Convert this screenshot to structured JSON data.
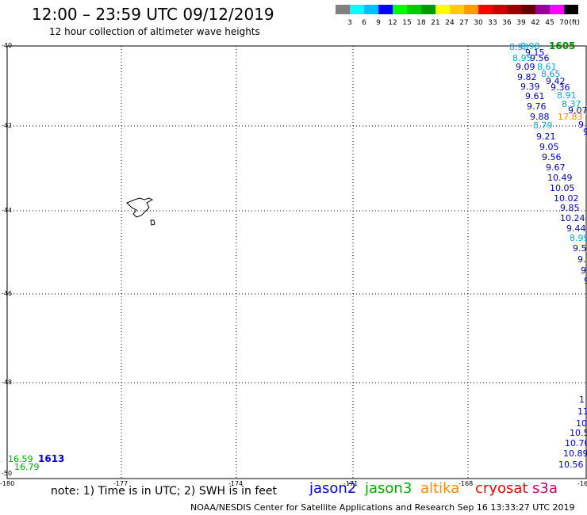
{
  "header": {
    "title": "12:00 – 23:59 UTC 09/12/2019",
    "subtitle": "12 hour collection of altimeter wave heights"
  },
  "colorbar": {
    "colors": [
      "#808080",
      "#00ffff",
      "#00bfff",
      "#0000ff",
      "#00ff00",
      "#00cc00",
      "#009900",
      "#ffff00",
      "#ffcc00",
      "#ff9900",
      "#ff0000",
      "#cc0000",
      "#990000",
      "#660000",
      "#990099",
      "#ff00ff",
      "#000000"
    ],
    "labels": [
      "3",
      "6",
      "9",
      "12",
      "15",
      "18",
      "21",
      "24",
      "27",
      "30",
      "33",
      "36",
      "39",
      "42",
      "45",
      "70"
    ],
    "unit": "(ft)"
  },
  "axes": {
    "lat_labels": [
      "-40",
      "-42",
      "-44",
      "-46",
      "-48",
      "-50"
    ],
    "lon_labels": [
      "-180",
      "-177",
      "-174",
      "-171",
      "-168",
      "-16"
    ]
  },
  "track_labels": {
    "top_time": "1605",
    "bottom_time": "1613",
    "right_track": [
      {
        "t": "8.98",
        "c": "#00aadd"
      },
      {
        "t": "8.93",
        "c": "#00aadd"
      },
      {
        "t": "9.15",
        "c": "#0000cc"
      },
      {
        "t": "8.95",
        "c": "#00aadd"
      },
      {
        "t": "9.56",
        "c": "#0000cc"
      },
      {
        "t": "9.09",
        "c": "#0000cc"
      },
      {
        "t": "8.61",
        "c": "#00aadd"
      },
      {
        "t": "8.65",
        "c": "#00aadd"
      },
      {
        "t": "9.82",
        "c": "#0000cc"
      },
      {
        "t": "9.42",
        "c": "#0000cc"
      },
      {
        "t": "9.39",
        "c": "#0000cc"
      },
      {
        "t": "9.36",
        "c": "#0000cc"
      },
      {
        "t": "9.61",
        "c": "#0000cc"
      },
      {
        "t": "8.91",
        "c": "#00aadd"
      },
      {
        "t": "9.76",
        "c": "#0000cc"
      },
      {
        "t": "8.37",
        "c": "#00aadd"
      },
      {
        "t": "9.07",
        "c": "#0000cc"
      },
      {
        "t": "9.88",
        "c": "#0000cc"
      },
      {
        "t": "17.83",
        "c": "#ff8800"
      },
      {
        "t": "8.79",
        "c": "#00aadd"
      },
      {
        "t": "9",
        "c": "#0000cc"
      },
      {
        "t": "9",
        "c": "#0000cc"
      },
      {
        "t": "9.21",
        "c": "#0000cc"
      },
      {
        "t": "9.05",
        "c": "#0000cc"
      },
      {
        "t": "9.56",
        "c": "#0000cc"
      },
      {
        "t": "9.67",
        "c": "#0000cc"
      },
      {
        "t": "10.49",
        "c": "#0000cc"
      },
      {
        "t": "10.05",
        "c": "#0000cc"
      },
      {
        "t": "10.02",
        "c": "#0000cc"
      },
      {
        "t": "9.85",
        "c": "#0000cc"
      },
      {
        "t": "10.24",
        "c": "#0000cc"
      },
      {
        "t": "9.44",
        "c": "#0000cc"
      },
      {
        "t": "8.99",
        "c": "#00aadd"
      },
      {
        "t": "9.5",
        "c": "#0000cc"
      },
      {
        "t": "9.",
        "c": "#0000cc"
      },
      {
        "t": "9",
        "c": "#0000cc"
      },
      {
        "t": "9",
        "c": "#0000cc"
      }
    ],
    "right_bottom_track": [
      {
        "t": "1",
        "c": "#0000cc"
      },
      {
        "t": "11",
        "c": "#0000cc"
      },
      {
        "t": "10.",
        "c": "#0000cc"
      },
      {
        "t": "10.5",
        "c": "#0000cc"
      },
      {
        "t": "10.70",
        "c": "#0000cc"
      },
      {
        "t": "10.89",
        "c": "#0000cc"
      },
      {
        "t": "10.56",
        "c": "#0000cc"
      }
    ],
    "left_bottom": [
      {
        "t": "16.59",
        "c": "#00aa00"
      },
      {
        "t": "16.79",
        "c": "#00aa00"
      }
    ]
  },
  "note": "note: 1) Time is in UTC; 2) SWH is in feet",
  "legend": [
    {
      "name": "jason2",
      "color": "#0000ee"
    },
    {
      "name": "jason3",
      "color": "#00aa00"
    },
    {
      "name": "altika",
      "color": "#ff8800"
    },
    {
      "name": "cryosat",
      "color": "#ee0000"
    },
    {
      "name": "s3a",
      "color": "#cc0066"
    }
  ],
  "credit": "NOAA/NESDIS Center for Satellite Applications and Research   Sep 16 13:33:27 UTC 2019"
}
